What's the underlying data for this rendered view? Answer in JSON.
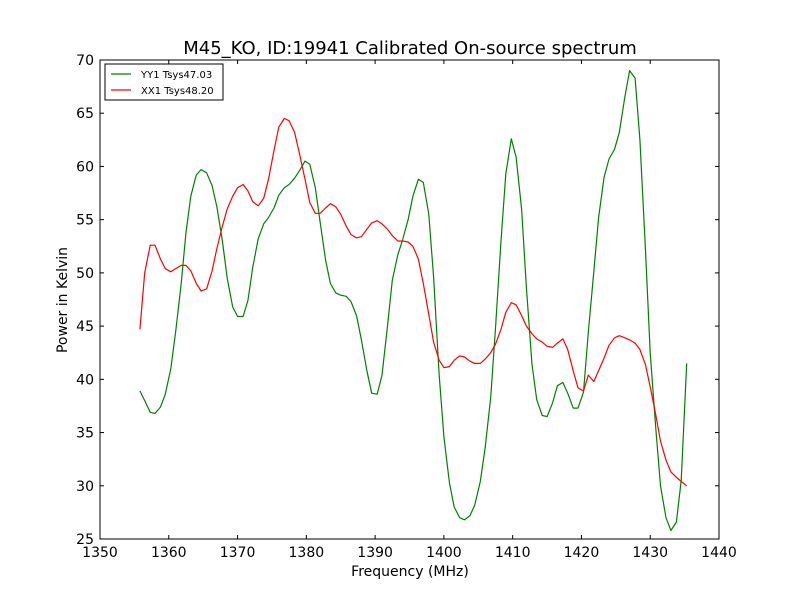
{
  "chart_data": {
    "type": "line",
    "title": "M45_KO, ID:19941 Calibrated On-source spectrum",
    "xlabel": "Frequency (MHz)",
    "ylabel": "Power in Kelvin",
    "xlim": [
      1350,
      1440
    ],
    "ylim": [
      25,
      70
    ],
    "xticks": [
      1350,
      1360,
      1370,
      1380,
      1390,
      1400,
      1410,
      1420,
      1430,
      1440
    ],
    "yticks": [
      25,
      30,
      35,
      40,
      45,
      50,
      55,
      60,
      65,
      70
    ],
    "grid": false,
    "legend_position": "top-left",
    "series": [
      {
        "name": "YY1 Tsys47.03",
        "color": "#008000",
        "points": [
          [
            1355.8,
            38.9
          ],
          [
            1356.5,
            38.0
          ],
          [
            1357.3,
            36.9
          ],
          [
            1358.0,
            36.8
          ],
          [
            1358.8,
            37.4
          ],
          [
            1359.5,
            38.6
          ],
          [
            1360.3,
            41.0
          ],
          [
            1361.0,
            44.5
          ],
          [
            1361.8,
            49.0
          ],
          [
            1362.5,
            53.8
          ],
          [
            1363.2,
            57.2
          ],
          [
            1364.0,
            59.2
          ],
          [
            1364.7,
            59.7
          ],
          [
            1365.5,
            59.4
          ],
          [
            1366.3,
            58.2
          ],
          [
            1367.0,
            56.2
          ],
          [
            1367.8,
            53.0
          ],
          [
            1368.5,
            49.5
          ],
          [
            1369.3,
            46.8
          ],
          [
            1370.0,
            45.9
          ],
          [
            1370.8,
            45.9
          ],
          [
            1371.5,
            47.4
          ],
          [
            1372.2,
            50.5
          ],
          [
            1373.0,
            53.2
          ],
          [
            1373.8,
            54.6
          ],
          [
            1374.5,
            55.2
          ],
          [
            1375.3,
            56.1
          ],
          [
            1376.0,
            57.3
          ],
          [
            1376.8,
            58.0
          ],
          [
            1377.5,
            58.3
          ],
          [
            1378.3,
            58.9
          ],
          [
            1379.0,
            59.6
          ],
          [
            1379.8,
            60.5
          ],
          [
            1380.5,
            60.2
          ],
          [
            1381.3,
            58.0
          ],
          [
            1382.0,
            54.8
          ],
          [
            1382.8,
            51.2
          ],
          [
            1383.5,
            49.0
          ],
          [
            1384.3,
            48.1
          ],
          [
            1385.0,
            47.9
          ],
          [
            1385.8,
            47.8
          ],
          [
            1386.5,
            47.3
          ],
          [
            1387.3,
            46.0
          ],
          [
            1388.0,
            43.7
          ],
          [
            1388.8,
            40.8
          ],
          [
            1389.5,
            38.7
          ],
          [
            1390.3,
            38.6
          ],
          [
            1391.0,
            40.4
          ],
          [
            1391.8,
            45.0
          ],
          [
            1392.5,
            49.3
          ],
          [
            1393.3,
            51.7
          ],
          [
            1394.0,
            53.1
          ],
          [
            1394.8,
            55.0
          ],
          [
            1395.5,
            57.2
          ],
          [
            1396.3,
            58.8
          ],
          [
            1397.0,
            58.5
          ],
          [
            1397.8,
            55.5
          ],
          [
            1398.5,
            49.6
          ],
          [
            1399.3,
            40.5
          ],
          [
            1400.0,
            34.6
          ],
          [
            1400.8,
            30.3
          ],
          [
            1401.5,
            28.0
          ],
          [
            1402.3,
            27.0
          ],
          [
            1403.0,
            26.8
          ],
          [
            1403.8,
            27.2
          ],
          [
            1404.5,
            28.2
          ],
          [
            1405.3,
            30.4
          ],
          [
            1406.0,
            33.6
          ],
          [
            1406.8,
            38.3
          ],
          [
            1407.5,
            44.8
          ],
          [
            1408.3,
            53.0
          ],
          [
            1409.0,
            59.3
          ],
          [
            1409.8,
            62.6
          ],
          [
            1410.5,
            60.9
          ],
          [
            1411.3,
            56.0
          ],
          [
            1412.0,
            48.6
          ],
          [
            1412.8,
            41.5
          ],
          [
            1413.5,
            38.1
          ],
          [
            1414.3,
            36.6
          ],
          [
            1415.0,
            36.5
          ],
          [
            1415.8,
            37.8
          ],
          [
            1416.5,
            39.4
          ],
          [
            1417.3,
            39.7
          ],
          [
            1418.0,
            38.7
          ],
          [
            1418.8,
            37.3
          ],
          [
            1419.5,
            37.3
          ],
          [
            1420.3,
            38.8
          ],
          [
            1421.0,
            44.4
          ],
          [
            1421.8,
            50.1
          ],
          [
            1422.5,
            55.2
          ],
          [
            1423.3,
            59.0
          ],
          [
            1424.0,
            60.7
          ],
          [
            1424.8,
            61.6
          ],
          [
            1425.5,
            63.2
          ],
          [
            1426.3,
            66.5
          ],
          [
            1427.0,
            69.0
          ],
          [
            1427.8,
            68.3
          ],
          [
            1428.5,
            62.5
          ],
          [
            1429.3,
            52.3
          ],
          [
            1430.0,
            42.5
          ],
          [
            1430.8,
            35.5
          ],
          [
            1431.5,
            30.0
          ],
          [
            1432.3,
            27.0
          ],
          [
            1433.0,
            25.8
          ],
          [
            1433.8,
            26.6
          ],
          [
            1434.5,
            30.5
          ],
          [
            1435.3,
            41.5
          ]
        ]
      },
      {
        "name": "XX1 Tsys48.20",
        "color": "#ff0000",
        "points": [
          [
            1355.8,
            44.7
          ],
          [
            1356.5,
            50.0
          ],
          [
            1357.3,
            52.6
          ],
          [
            1358.0,
            52.6
          ],
          [
            1358.8,
            51.3
          ],
          [
            1359.5,
            50.4
          ],
          [
            1360.3,
            50.1
          ],
          [
            1361.0,
            50.4
          ],
          [
            1361.8,
            50.7
          ],
          [
            1362.5,
            50.7
          ],
          [
            1363.2,
            50.2
          ],
          [
            1364.0,
            49.0
          ],
          [
            1364.7,
            48.3
          ],
          [
            1365.5,
            48.5
          ],
          [
            1366.3,
            50.2
          ],
          [
            1367.0,
            52.3
          ],
          [
            1367.8,
            54.4
          ],
          [
            1368.5,
            56.0
          ],
          [
            1369.3,
            57.2
          ],
          [
            1370.0,
            58.0
          ],
          [
            1370.8,
            58.3
          ],
          [
            1371.5,
            57.7
          ],
          [
            1372.2,
            56.7
          ],
          [
            1373.0,
            56.3
          ],
          [
            1373.8,
            57.0
          ],
          [
            1374.5,
            58.8
          ],
          [
            1375.3,
            61.5
          ],
          [
            1376.0,
            63.7
          ],
          [
            1376.8,
            64.5
          ],
          [
            1377.5,
            64.3
          ],
          [
            1378.3,
            63.2
          ],
          [
            1379.0,
            61.2
          ],
          [
            1379.8,
            58.8
          ],
          [
            1380.5,
            56.6
          ],
          [
            1381.3,
            55.6
          ],
          [
            1382.0,
            55.6
          ],
          [
            1382.8,
            56.1
          ],
          [
            1383.5,
            56.5
          ],
          [
            1384.3,
            56.2
          ],
          [
            1385.0,
            55.5
          ],
          [
            1385.8,
            54.4
          ],
          [
            1386.5,
            53.6
          ],
          [
            1387.3,
            53.3
          ],
          [
            1388.0,
            53.4
          ],
          [
            1388.8,
            54.1
          ],
          [
            1389.5,
            54.7
          ],
          [
            1390.3,
            54.9
          ],
          [
            1391.0,
            54.6
          ],
          [
            1391.8,
            54.1
          ],
          [
            1392.5,
            53.5
          ],
          [
            1393.3,
            53.0
          ],
          [
            1394.0,
            53.0
          ],
          [
            1394.8,
            52.9
          ],
          [
            1395.5,
            52.5
          ],
          [
            1396.3,
            51.3
          ],
          [
            1397.0,
            49.0
          ],
          [
            1397.8,
            46.1
          ],
          [
            1398.5,
            43.5
          ],
          [
            1399.3,
            41.8
          ],
          [
            1400.0,
            41.1
          ],
          [
            1400.8,
            41.2
          ],
          [
            1401.5,
            41.8
          ],
          [
            1402.3,
            42.2
          ],
          [
            1403.0,
            42.1
          ],
          [
            1403.8,
            41.7
          ],
          [
            1404.5,
            41.5
          ],
          [
            1405.3,
            41.5
          ],
          [
            1406.0,
            41.9
          ],
          [
            1406.8,
            42.5
          ],
          [
            1407.5,
            43.3
          ],
          [
            1408.3,
            44.7
          ],
          [
            1409.0,
            46.3
          ],
          [
            1409.8,
            47.2
          ],
          [
            1410.5,
            47.0
          ],
          [
            1411.3,
            46.0
          ],
          [
            1412.0,
            45.0
          ],
          [
            1412.8,
            44.3
          ],
          [
            1413.5,
            43.8
          ],
          [
            1414.3,
            43.5
          ],
          [
            1415.0,
            43.1
          ],
          [
            1415.8,
            43.0
          ],
          [
            1416.5,
            43.4
          ],
          [
            1417.3,
            43.8
          ],
          [
            1418.0,
            42.8
          ],
          [
            1418.8,
            40.8
          ],
          [
            1419.5,
            39.2
          ],
          [
            1420.3,
            38.9
          ],
          [
            1421.0,
            40.4
          ],
          [
            1421.8,
            39.8
          ],
          [
            1422.5,
            40.8
          ],
          [
            1423.3,
            42.0
          ],
          [
            1424.0,
            43.2
          ],
          [
            1424.8,
            43.9
          ],
          [
            1425.5,
            44.1
          ],
          [
            1426.3,
            43.9
          ],
          [
            1427.0,
            43.7
          ],
          [
            1427.8,
            43.4
          ],
          [
            1428.5,
            42.8
          ],
          [
            1429.3,
            41.4
          ],
          [
            1430.0,
            39.3
          ],
          [
            1430.8,
            36.7
          ],
          [
            1431.5,
            34.2
          ],
          [
            1432.3,
            32.4
          ],
          [
            1433.0,
            31.3
          ],
          [
            1433.8,
            30.8
          ],
          [
            1434.5,
            30.4
          ],
          [
            1435.3,
            30.0
          ]
        ]
      }
    ]
  }
}
